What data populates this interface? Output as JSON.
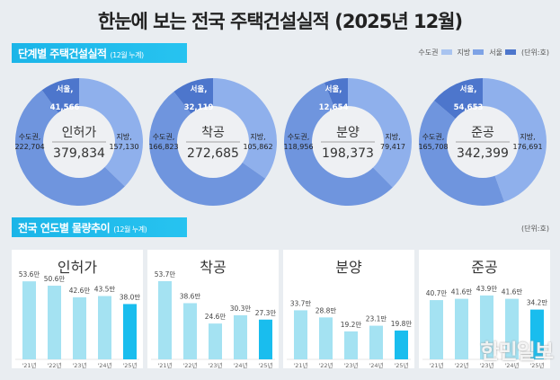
{
  "title": "한눈에 보는 전국 주택건설실적 (2025년 12월)",
  "section1": {
    "label": "단계별 주택건설실적",
    "sub": "(12월 누계)"
  },
  "section2": {
    "label": "전국 연도별 물량추이",
    "sub": "(12월 누계)"
  },
  "legend": {
    "items": [
      {
        "name": "수도권",
        "color": "#a9c4f0"
      },
      {
        "name": "지방",
        "color": "#7ea3e6"
      },
      {
        "name": "서울",
        "color": "#4d76cc"
      }
    ],
    "unit": "(단위:호)"
  },
  "unit2": "(단위:호)",
  "watermark": "한민일보",
  "chart_data": [
    {
      "type": "pie",
      "donut": true,
      "title": "인허가",
      "total": "379,834",
      "slices": [
        {
          "name": "지방",
          "value": 157130,
          "label": "157,130"
        },
        {
          "name": "수도권",
          "value": 222704,
          "label": "222,704"
        },
        {
          "name": "서울",
          "value": 41566,
          "label": "41,566"
        }
      ]
    },
    {
      "type": "pie",
      "donut": true,
      "title": "착공",
      "total": "272,685",
      "slices": [
        {
          "name": "지방",
          "value": 105862,
          "label": "105,862"
        },
        {
          "name": "수도권",
          "value": 166823,
          "label": "166,823"
        },
        {
          "name": "서울",
          "value": 32119,
          "label": "32,119"
        }
      ]
    },
    {
      "type": "pie",
      "donut": true,
      "title": "분양",
      "total": "198,373",
      "slices": [
        {
          "name": "지방",
          "value": 79417,
          "label": "79,417"
        },
        {
          "name": "수도권",
          "value": 118956,
          "label": "118,956"
        },
        {
          "name": "서울",
          "value": 12654,
          "label": "12,654"
        }
      ]
    },
    {
      "type": "pie",
      "donut": true,
      "title": "준공",
      "total": "342,399",
      "slices": [
        {
          "name": "지방",
          "value": 176691,
          "label": "176,691"
        },
        {
          "name": "수도권",
          "value": 165708,
          "label": "165,708"
        },
        {
          "name": "서울",
          "value": 54653,
          "label": "54,653"
        }
      ]
    },
    {
      "type": "bar",
      "title": "인허가",
      "categories": [
        "'21년",
        "'22년",
        "'23년",
        "'24년",
        "'25년"
      ],
      "values": [
        53.6,
        50.6,
        42.6,
        43.5,
        38.0
      ],
      "labels": [
        "53.6만",
        "50.6만",
        "42.6만",
        "43.5만",
        "38.0만"
      ]
    },
    {
      "type": "bar",
      "title": "착공",
      "categories": [
        "'21년",
        "'22년",
        "'23년",
        "'24년",
        "'25년"
      ],
      "values": [
        53.7,
        38.6,
        24.6,
        30.3,
        27.3
      ],
      "labels": [
        "53.7만",
        "38.6만",
        "24.6만",
        "30.3만",
        "27.3만"
      ]
    },
    {
      "type": "bar",
      "title": "분양",
      "categories": [
        "'21년",
        "'22년",
        "'23년",
        "'24년",
        "'25년"
      ],
      "values": [
        33.7,
        28.8,
        19.2,
        23.1,
        19.8
      ],
      "labels": [
        "33.7만",
        "28.8만",
        "19.2만",
        "23.1만",
        "19.8만"
      ]
    },
    {
      "type": "bar",
      "title": "준공",
      "categories": [
        "'21년",
        "'22년",
        "'23년",
        "'24년",
        "'25년"
      ],
      "values": [
        40.7,
        41.6,
        43.9,
        41.6,
        34.2
      ],
      "labels": [
        "40.7만",
        "41.6만",
        "43.9만",
        "41.6만",
        "34.2만"
      ]
    }
  ]
}
